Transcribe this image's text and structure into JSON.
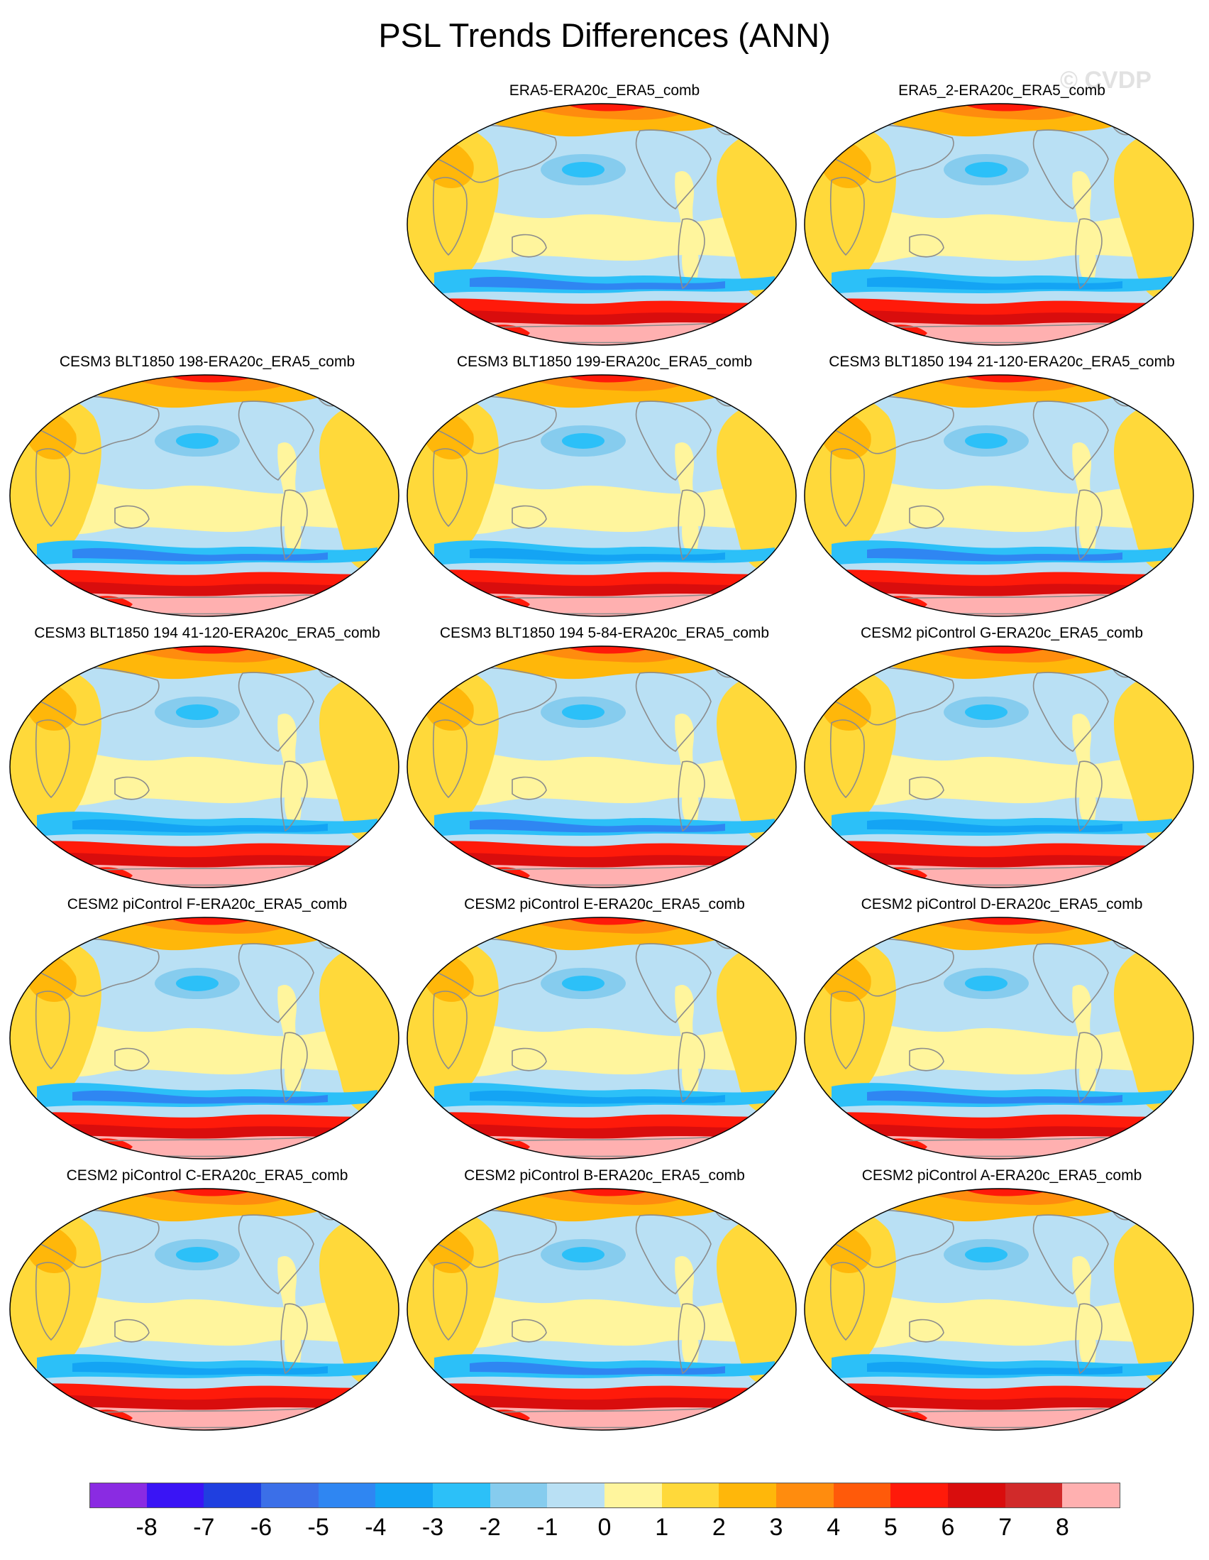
{
  "title": "PSL Trends Differences (ANN)",
  "watermark": "© CVDP",
  "projection": "robinson-like-ellipse",
  "panels": [
    {
      "title": "ERA5-ERA20c_ERA5_comb",
      "row": 0,
      "col": 1
    },
    {
      "title": "ERA5_2-ERA20c_ERA5_comb",
      "row": 0,
      "col": 2
    },
    {
      "title": "CESM3 BLT1850 198-ERA20c_ERA5_comb",
      "row": 1,
      "col": 0
    },
    {
      "title": "CESM3 BLT1850 199-ERA20c_ERA5_comb",
      "row": 1,
      "col": 1
    },
    {
      "title": "CESM3 BLT1850 194 21-120-ERA20c_ERA5_comb",
      "row": 1,
      "col": 2
    },
    {
      "title": "CESM3 BLT1850 194 41-120-ERA20c_ERA5_comb",
      "row": 2,
      "col": 0
    },
    {
      "title": "CESM3 BLT1850 194 5-84-ERA20c_ERA5_comb",
      "row": 2,
      "col": 1
    },
    {
      "title": "CESM2 piControl G-ERA20c_ERA5_comb",
      "row": 2,
      "col": 2
    },
    {
      "title": "CESM2 piControl F-ERA20c_ERA5_comb",
      "row": 3,
      "col": 0
    },
    {
      "title": "CESM2 piControl E-ERA20c_ERA5_comb",
      "row": 3,
      "col": 1
    },
    {
      "title": "CESM2 piControl D-ERA20c_ERA5_comb",
      "row": 3,
      "col": 2
    },
    {
      "title": "CESM2 piControl C-ERA20c_ERA5_comb",
      "row": 4,
      "col": 0
    },
    {
      "title": "CESM2 piControl B-ERA20c_ERA5_comb",
      "row": 4,
      "col": 1
    },
    {
      "title": "CESM2 piControl A-ERA20c_ERA5_comb",
      "row": 4,
      "col": 2
    }
  ],
  "colorbar": {
    "labels": [
      "-8",
      "-7",
      "-6",
      "-5",
      "-4",
      "-3",
      "-2",
      "-1",
      "0",
      "1",
      "2",
      "3",
      "4",
      "5",
      "6",
      "7",
      "8"
    ],
    "colors": [
      "#8a2be2",
      "#3a14f5",
      "#1f3fe0",
      "#3b6fe8",
      "#2f86f2",
      "#14a4f4",
      "#2cc0f8",
      "#86ccee",
      "#b9e0f4",
      "#fff59d",
      "#ffd93a",
      "#ffb70a",
      "#ff8c0e",
      "#ff5a0a",
      "#ff1a0a",
      "#d90d0d",
      "#d12a2a",
      "#ffb0b0"
    ]
  },
  "colors": {
    "ocean_neutral": "#b9e0f4",
    "land_outline": "#8c8c8c",
    "land_fill": "none"
  }
}
